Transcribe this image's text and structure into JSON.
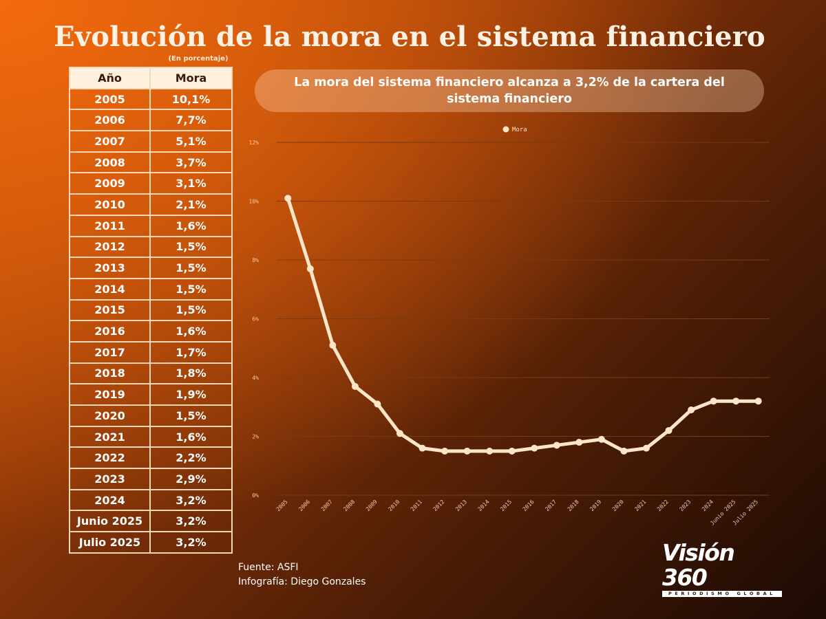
{
  "title": "Evolución de la mora en el sistema financiero",
  "unit_note": "(En porcentaje)",
  "table": {
    "headers": [
      "Año",
      "Mora"
    ],
    "rows": [
      [
        "2005",
        "10,1%"
      ],
      [
        "2006",
        "7,7%"
      ],
      [
        "2007",
        "5,1%"
      ],
      [
        "2008",
        "3,7%"
      ],
      [
        "2009",
        "3,1%"
      ],
      [
        "2010",
        "2,1%"
      ],
      [
        "2011",
        "1,6%"
      ],
      [
        "2012",
        "1,5%"
      ],
      [
        "2013",
        "1,5%"
      ],
      [
        "2014",
        "1,5%"
      ],
      [
        "2015",
        "1,5%"
      ],
      [
        "2016",
        "1,6%"
      ],
      [
        "2017",
        "1,7%"
      ],
      [
        "2018",
        "1,8%"
      ],
      [
        "2019",
        "1,9%"
      ],
      [
        "2020",
        "1,5%"
      ],
      [
        "2021",
        "1,6%"
      ],
      [
        "2022",
        "2,2%"
      ],
      [
        "2023",
        "2,9%"
      ],
      [
        "2024",
        "3,2%"
      ],
      [
        "Junio 2025",
        "3,2%"
      ],
      [
        "Julio 2025",
        "3,2%"
      ]
    ]
  },
  "banner": "La mora del sistema financiero alcanza a 3,2% de la cartera del sistema financiero",
  "source": "Fuente: ASFI",
  "credit": "Infografía: Diego Gonzales",
  "logo": {
    "main": "Visión 360",
    "tagline": "PERIODISMO GLOBAL"
  },
  "colors": {
    "line": "#fde6c7",
    "grid": "#7a3a14",
    "tick": "#f3c9a3"
  },
  "chart_data": {
    "type": "line",
    "categories": [
      "2005",
      "2006",
      "2007",
      "2008",
      "2009",
      "2010",
      "2011",
      "2012",
      "2013",
      "2014",
      "2015",
      "2016",
      "2017",
      "2018",
      "2019",
      "2020",
      "2021",
      "2022",
      "2023",
      "2024",
      "Junio 2025",
      "Julio 2025"
    ],
    "series": [
      {
        "name": "Mora",
        "values": [
          10.1,
          7.7,
          5.1,
          3.7,
          3.1,
          2.1,
          1.6,
          1.5,
          1.5,
          1.5,
          1.5,
          1.6,
          1.7,
          1.8,
          1.9,
          1.5,
          1.6,
          2.2,
          2.9,
          3.2,
          3.2,
          3.2
        ]
      }
    ],
    "yticks": [
      "0%",
      "2%",
      "4%",
      "6%",
      "8%",
      "10%",
      "12%"
    ],
    "ylim": [
      0,
      12
    ],
    "grid": true,
    "legend": "top-center"
  }
}
